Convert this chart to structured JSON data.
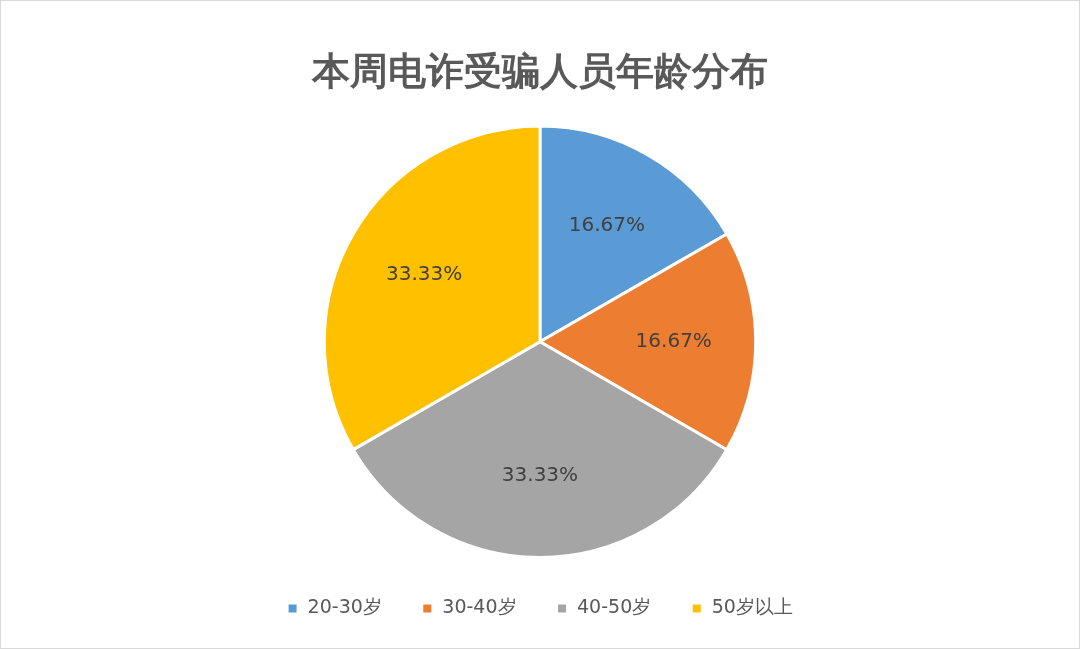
{
  "chart_data": {
    "type": "pie",
    "title": "本周电诈受骗人员年龄分布",
    "categories": [
      "20-30岁",
      "30-40岁",
      "40-50岁",
      "50岁以上"
    ],
    "values": [
      16.67,
      16.67,
      33.33,
      33.33
    ],
    "colors": [
      "#5b9bd5",
      "#ed7d31",
      "#a5a5a5",
      "#ffc000"
    ],
    "value_labels": [
      "16.67%",
      "16.67%",
      "33.33%",
      "33.33%"
    ],
    "legend": "bottom"
  }
}
